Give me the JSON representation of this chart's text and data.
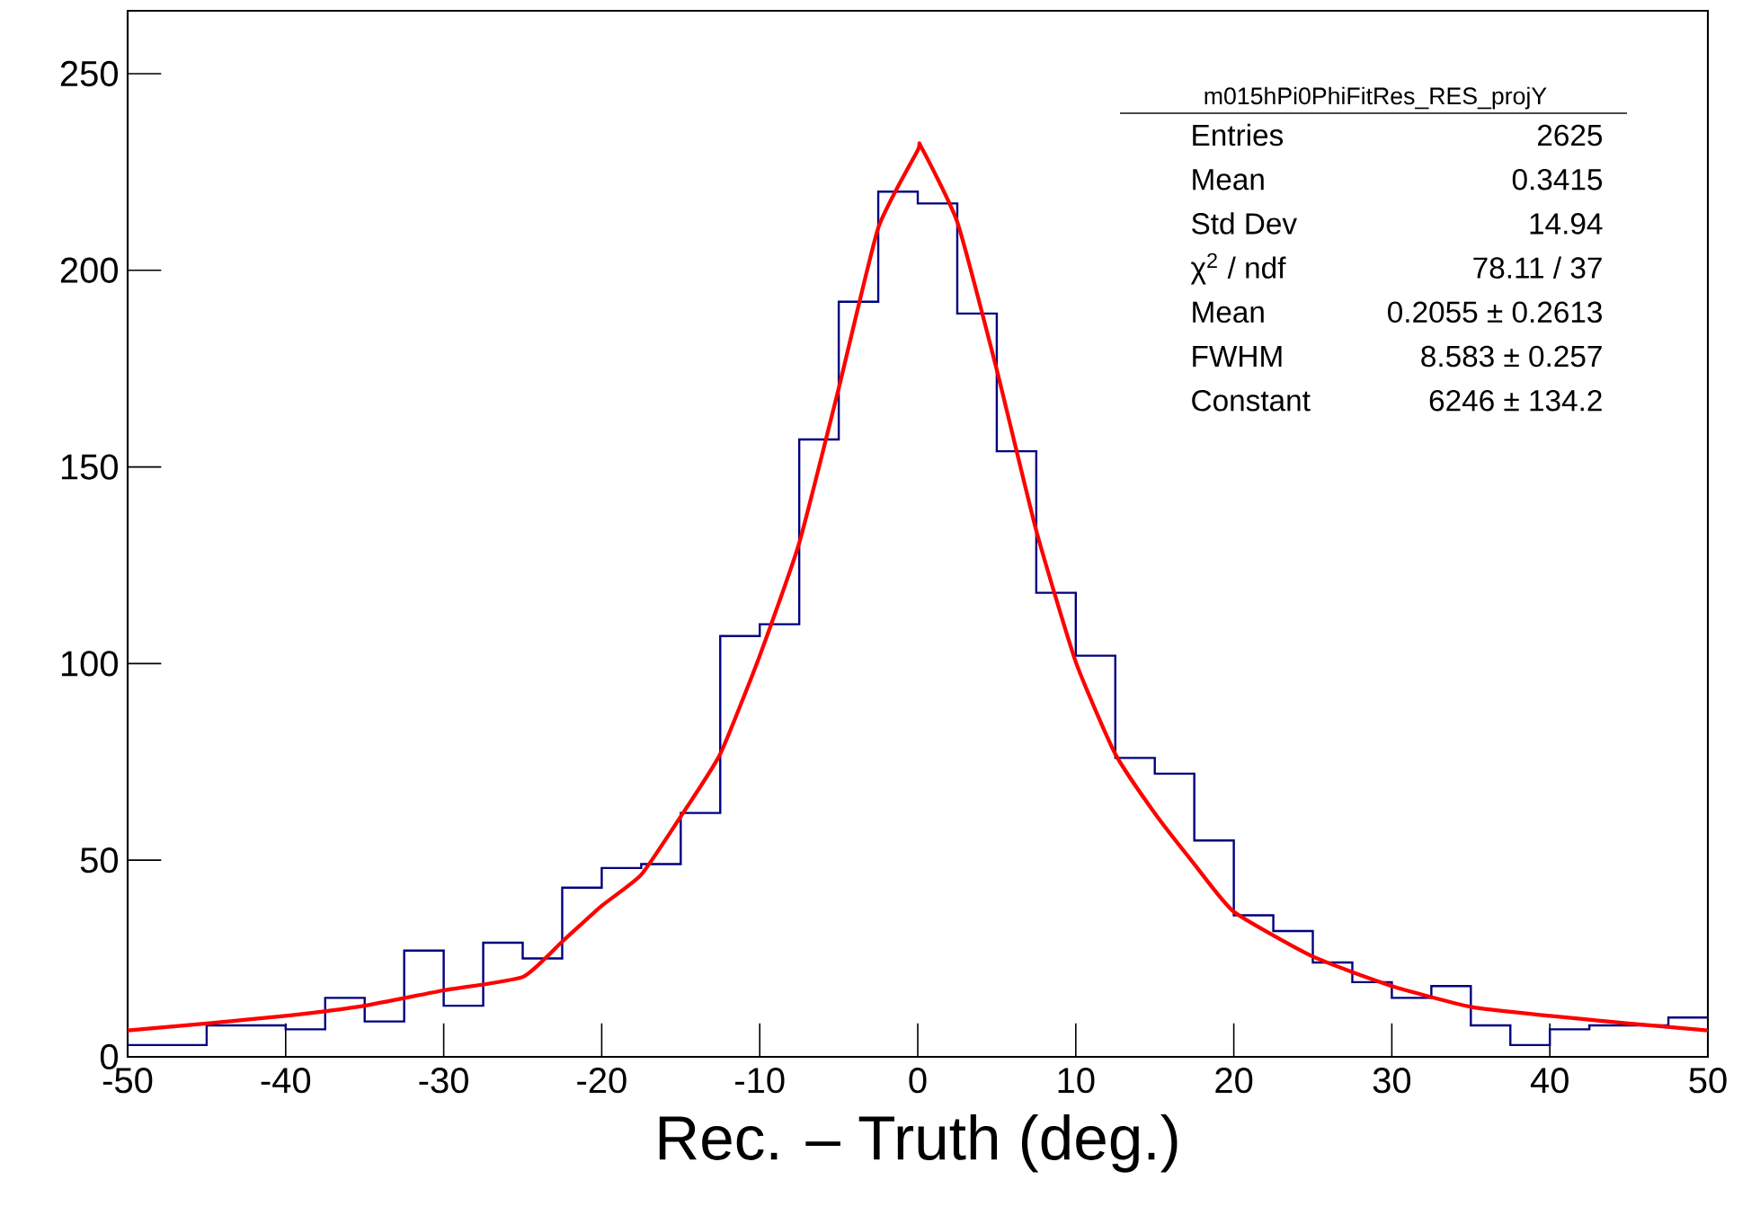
{
  "chart_data": {
    "type": "histogram",
    "xlabel": "Rec. – Truth (deg.)",
    "bins": [
      -50,
      -47.5,
      -45,
      -42.5,
      -40,
      -37.5,
      -35,
      -32.5,
      -30,
      -27.5,
      -25,
      -22.5,
      -20,
      -17.5,
      -15,
      -12.5,
      -10,
      -7.5,
      -5,
      -2.5,
      0,
      2.5,
      5,
      7.5,
      10,
      12.5,
      15,
      17.5,
      20,
      22.5,
      25,
      27.5,
      30,
      32.5,
      35,
      37.5,
      40,
      42.5,
      45,
      47.5,
      50
    ],
    "series": [
      {
        "color": "#000080",
        "values": [
          3,
          3,
          8,
          8,
          7,
          15,
          9,
          27,
          13,
          29,
          25,
          43,
          48,
          49,
          62,
          107,
          110,
          157,
          192,
          220,
          217,
          189,
          154,
          118,
          102,
          76,
          72,
          55,
          36,
          32,
          24,
          19,
          15,
          18,
          8,
          3,
          7,
          8,
          8,
          10
        ]
      },
      {
        "type": "line",
        "color": "#ff0000",
        "x": [
          -50,
          -45,
          -40,
          -35,
          -30,
          -25,
          -22.5,
          -20,
          -17.5,
          -15,
          -12.5,
          -10,
          -7.5,
          -5,
          -2.5,
          0,
          0.2,
          2.5,
          5,
          7.5,
          10,
          12.5,
          15,
          17.5,
          20,
          25,
          30,
          35,
          40,
          45,
          50
        ],
        "values": [
          6.7,
          8.5,
          10.4,
          13,
          16.9,
          20.3,
          29.3,
          38.4,
          46.3,
          61.1,
          77,
          102,
          130.7,
          170,
          210.8,
          230.5,
          231.5,
          212.3,
          174.7,
          133.8,
          100.4,
          77,
          61.9,
          49,
          36.9,
          25.5,
          18,
          12.7,
          10.4,
          8.5,
          6.7
        ]
      }
    ],
    "xlim": [
      -50,
      50
    ],
    "ylim": [
      0,
      266
    ],
    "xticks": [
      -50,
      -40,
      -30,
      -20,
      -10,
      0,
      10,
      20,
      30,
      40,
      50
    ],
    "yticks": [
      0,
      50,
      100,
      150,
      200,
      250
    ],
    "grid": false,
    "annotations": [
      "m015hPi0PhiFitRes_RES_projY",
      "Entries",
      "2625",
      "Mean",
      "0.3415",
      "Std Dev",
      "14.94",
      "χ$^{2}$ / ndf",
      "78.11 / 37",
      "Mean",
      "0.2055 ± 0.2613",
      "FWHM",
      "8.583 ± 0.257",
      "Constant",
      "6246 ± 134.2"
    ]
  }
}
